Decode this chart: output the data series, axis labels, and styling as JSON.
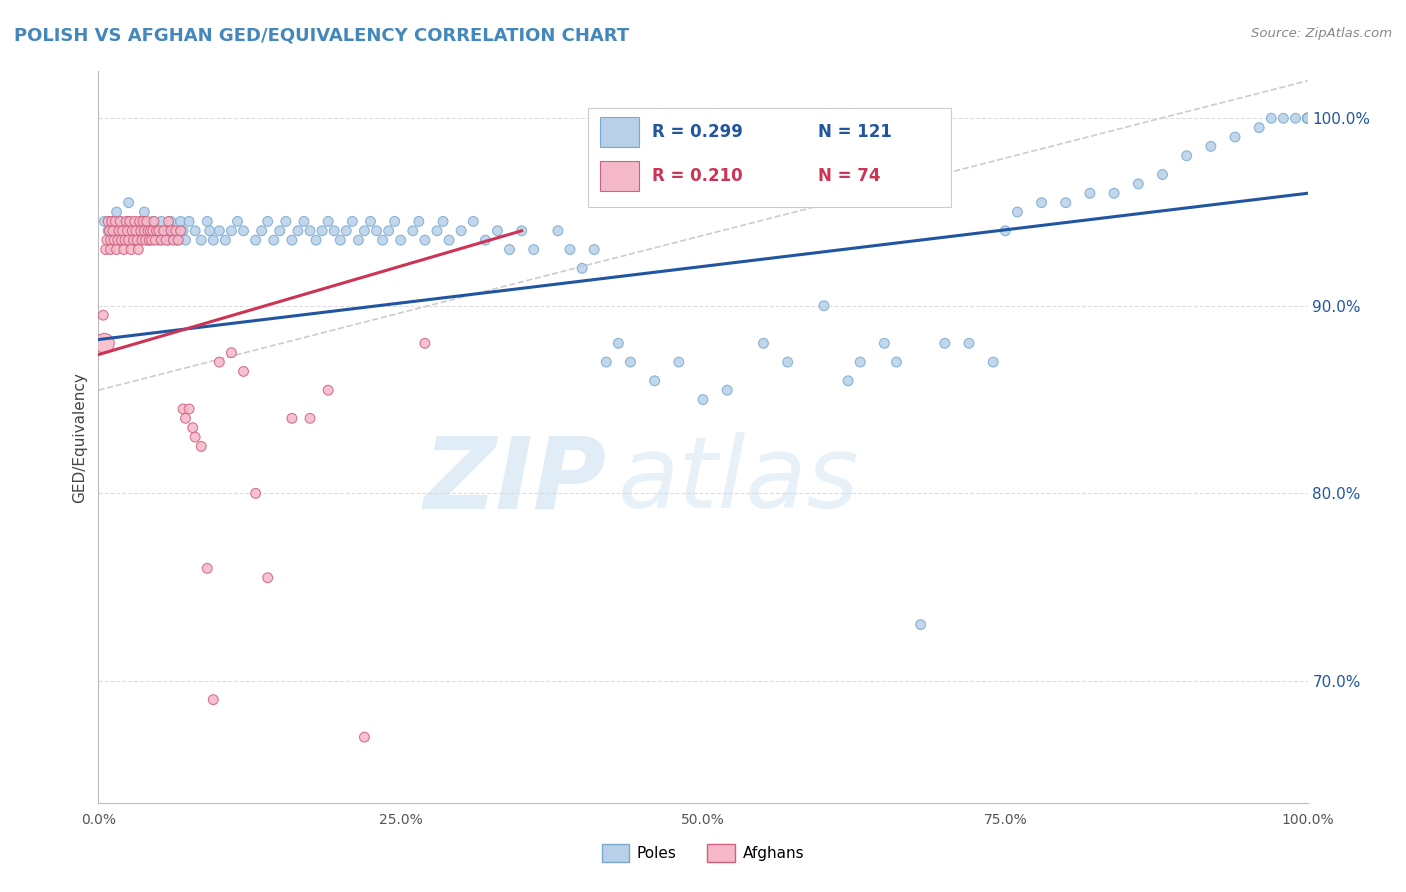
{
  "title": "POLISH VS AFGHAN GED/EQUIVALENCY CORRELATION CHART",
  "source": "Source: ZipAtlas.com",
  "ylabel": "GED/Equivalency",
  "legend_blue_label": "Poles",
  "legend_pink_label": "Afghans",
  "legend_blue_r": "R = 0.299",
  "legend_blue_n": "N = 121",
  "legend_pink_r": "R = 0.210",
  "legend_pink_n": "N = 74",
  "blue_color": "#b8d0e8",
  "blue_edge": "#7aaad0",
  "blue_line": "#2255a0",
  "pink_color": "#f5b8c8",
  "pink_edge": "#d06080",
  "pink_line": "#cc3355",
  "watermark_zip": "ZIP",
  "watermark_atlas": "atlas",
  "background": "#ffffff",
  "grid_color": "#dddddd",
  "diag_color": "#cccccc",
  "xlim": [
    0.0,
    1.0
  ],
  "ylim": [
    0.635,
    1.025
  ],
  "yticks": [
    0.7,
    0.8,
    0.9,
    1.0
  ],
  "xticks": [
    0.0,
    0.25,
    0.5,
    0.75,
    1.0
  ],
  "blue_line_ends": [
    0.0,
    0.882,
    1.0,
    0.96
  ],
  "pink_line_ends": [
    0.0,
    0.874,
    0.35,
    0.94
  ],
  "diag_line_ends": [
    0.0,
    0.855,
    1.0,
    1.02
  ],
  "poles_x": [
    0.005,
    0.008,
    0.012,
    0.015,
    0.018,
    0.02,
    0.022,
    0.025,
    0.025,
    0.03,
    0.032,
    0.035,
    0.038,
    0.04,
    0.042,
    0.045,
    0.048,
    0.05,
    0.052,
    0.055,
    0.058,
    0.06,
    0.062,
    0.065,
    0.068,
    0.07,
    0.072,
    0.075,
    0.08,
    0.085,
    0.09,
    0.092,
    0.095,
    0.1,
    0.105,
    0.11,
    0.115,
    0.12,
    0.13,
    0.135,
    0.14,
    0.145,
    0.15,
    0.155,
    0.16,
    0.165,
    0.17,
    0.175,
    0.18,
    0.185,
    0.19,
    0.195,
    0.2,
    0.205,
    0.21,
    0.215,
    0.22,
    0.225,
    0.23,
    0.235,
    0.24,
    0.245,
    0.25,
    0.26,
    0.265,
    0.27,
    0.28,
    0.285,
    0.29,
    0.3,
    0.31,
    0.32,
    0.33,
    0.34,
    0.35,
    0.36,
    0.38,
    0.39,
    0.4,
    0.41,
    0.42,
    0.43,
    0.44,
    0.46,
    0.48,
    0.5,
    0.52,
    0.55,
    0.57,
    0.6,
    0.62,
    0.63,
    0.65,
    0.66,
    0.68,
    0.7,
    0.72,
    0.74,
    0.75,
    0.76,
    0.78,
    0.8,
    0.82,
    0.84,
    0.86,
    0.88,
    0.9,
    0.92,
    0.94,
    0.96,
    0.97,
    0.98,
    0.99,
    1.0,
    1.0,
    1.0,
    1.0,
    1.0,
    1.0,
    1.0,
    1.0
  ],
  "poles_y": [
    0.945,
    0.94,
    0.935,
    0.95,
    0.945,
    0.935,
    0.94,
    0.945,
    0.955,
    0.94,
    0.935,
    0.945,
    0.95,
    0.94,
    0.935,
    0.945,
    0.94,
    0.935,
    0.945,
    0.94,
    0.935,
    0.945,
    0.94,
    0.935,
    0.945,
    0.94,
    0.935,
    0.945,
    0.94,
    0.935,
    0.945,
    0.94,
    0.935,
    0.94,
    0.935,
    0.94,
    0.945,
    0.94,
    0.935,
    0.94,
    0.945,
    0.935,
    0.94,
    0.945,
    0.935,
    0.94,
    0.945,
    0.94,
    0.935,
    0.94,
    0.945,
    0.94,
    0.935,
    0.94,
    0.945,
    0.935,
    0.94,
    0.945,
    0.94,
    0.935,
    0.94,
    0.945,
    0.935,
    0.94,
    0.945,
    0.935,
    0.94,
    0.945,
    0.935,
    0.94,
    0.945,
    0.935,
    0.94,
    0.93,
    0.94,
    0.93,
    0.94,
    0.93,
    0.92,
    0.93,
    0.87,
    0.88,
    0.87,
    0.86,
    0.87,
    0.85,
    0.855,
    0.88,
    0.87,
    0.9,
    0.86,
    0.87,
    0.88,
    0.87,
    0.73,
    0.88,
    0.88,
    0.87,
    0.94,
    0.95,
    0.955,
    0.955,
    0.96,
    0.96,
    0.965,
    0.97,
    0.98,
    0.985,
    0.99,
    0.995,
    1.0,
    1.0,
    1.0,
    1.0,
    1.0,
    1.0,
    1.0,
    1.0,
    1.0,
    1.0,
    1.0
  ],
  "poles_size": [
    50,
    50,
    50,
    50,
    50,
    50,
    50,
    50,
    50,
    50,
    50,
    50,
    50,
    50,
    50,
    50,
    50,
    50,
    50,
    50,
    50,
    50,
    50,
    50,
    50,
    50,
    50,
    50,
    50,
    50,
    50,
    50,
    50,
    50,
    50,
    50,
    50,
    50,
    50,
    50,
    50,
    50,
    50,
    50,
    50,
    50,
    50,
    50,
    50,
    50,
    50,
    50,
    50,
    50,
    50,
    50,
    50,
    50,
    50,
    50,
    50,
    50,
    50,
    50,
    50,
    50,
    50,
    50,
    50,
    50,
    50,
    50,
    50,
    50,
    50,
    50,
    50,
    50,
    50,
    50,
    50,
    50,
    50,
    50,
    50,
    50,
    50,
    50,
    50,
    50,
    50,
    50,
    50,
    50,
    50,
    50,
    50,
    50,
    50,
    50,
    50,
    50,
    50,
    50,
    50,
    50,
    50,
    50,
    50,
    50,
    50,
    50,
    50,
    50,
    50,
    50,
    50,
    50,
    50,
    50,
    50
  ],
  "afghans_x": [
    0.004,
    0.005,
    0.006,
    0.007,
    0.008,
    0.009,
    0.01,
    0.01,
    0.011,
    0.012,
    0.013,
    0.014,
    0.015,
    0.016,
    0.017,
    0.018,
    0.019,
    0.02,
    0.021,
    0.022,
    0.023,
    0.024,
    0.025,
    0.026,
    0.027,
    0.028,
    0.029,
    0.03,
    0.031,
    0.032,
    0.033,
    0.034,
    0.035,
    0.036,
    0.037,
    0.038,
    0.039,
    0.04,
    0.041,
    0.042,
    0.043,
    0.044,
    0.045,
    0.046,
    0.047,
    0.048,
    0.05,
    0.052,
    0.054,
    0.056,
    0.058,
    0.06,
    0.062,
    0.064,
    0.066,
    0.068,
    0.07,
    0.072,
    0.075,
    0.078,
    0.08,
    0.085,
    0.09,
    0.095,
    0.1,
    0.11,
    0.12,
    0.13,
    0.14,
    0.16,
    0.175,
    0.19,
    0.22,
    0.27
  ],
  "afghans_y": [
    0.895,
    0.88,
    0.93,
    0.935,
    0.945,
    0.94,
    0.935,
    0.93,
    0.945,
    0.94,
    0.935,
    0.945,
    0.93,
    0.935,
    0.94,
    0.945,
    0.935,
    0.94,
    0.93,
    0.935,
    0.945,
    0.94,
    0.935,
    0.945,
    0.93,
    0.94,
    0.935,
    0.945,
    0.94,
    0.935,
    0.93,
    0.945,
    0.94,
    0.935,
    0.945,
    0.94,
    0.935,
    0.945,
    0.94,
    0.935,
    0.94,
    0.935,
    0.94,
    0.945,
    0.935,
    0.94,
    0.94,
    0.935,
    0.94,
    0.935,
    0.945,
    0.94,
    0.935,
    0.94,
    0.935,
    0.94,
    0.845,
    0.84,
    0.845,
    0.835,
    0.83,
    0.825,
    0.76,
    0.69,
    0.87,
    0.875,
    0.865,
    0.8,
    0.755,
    0.84,
    0.84,
    0.855,
    0.67,
    0.88
  ],
  "afghans_size": [
    50,
    200,
    50,
    50,
    50,
    50,
    50,
    50,
    50,
    50,
    50,
    50,
    50,
    50,
    50,
    50,
    50,
    50,
    50,
    50,
    50,
    50,
    50,
    50,
    50,
    50,
    50,
    50,
    50,
    50,
    50,
    50,
    50,
    50,
    50,
    50,
    50,
    50,
    50,
    50,
    50,
    50,
    50,
    50,
    50,
    50,
    50,
    50,
    50,
    50,
    50,
    50,
    50,
    50,
    50,
    50,
    50,
    50,
    50,
    50,
    50,
    50,
    50,
    50,
    50,
    50,
    50,
    50,
    50,
    50,
    50,
    50,
    50,
    50
  ]
}
